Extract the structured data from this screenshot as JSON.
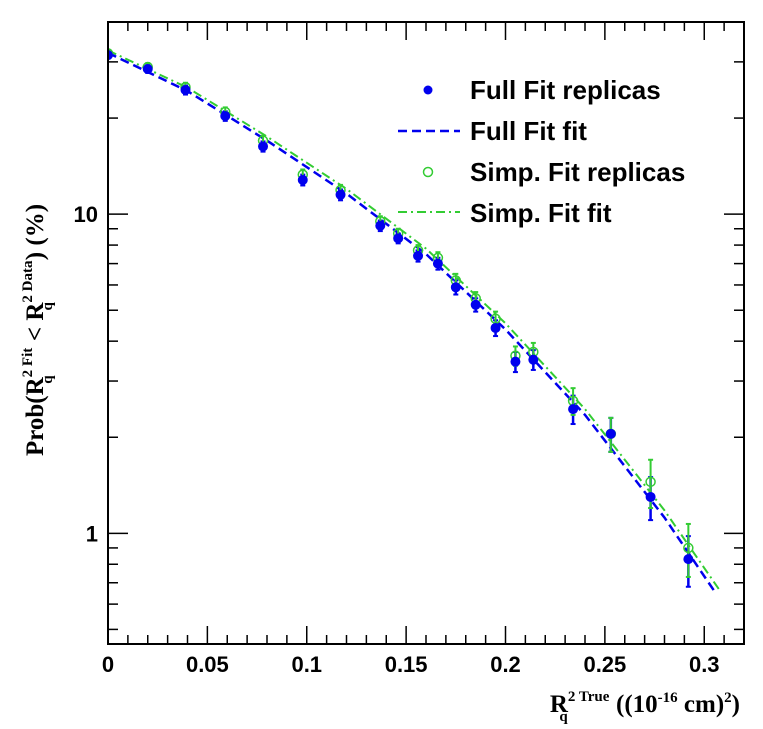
{
  "chart_data": {
    "type": "scatter",
    "title": "",
    "xlabel": {
      "base": "R",
      "sub": "q",
      "sup": "2 True",
      "rest": " ((10",
      "exp": "-16",
      "unit": " cm)",
      "close": "2",
      "end": ")"
    },
    "ylabel": {
      "pre": "Prob(R",
      "sup1": "2 Fit",
      "sub1": "q",
      "mid": " < R",
      "sup2": "2 Data",
      "sub2": "q",
      "post": ") (%)"
    },
    "x_range": [
      0,
      0.32
    ],
    "y_range": [
      0.45,
      40
    ],
    "y_scale": "log",
    "x_ticks": [
      {
        "value": 0,
        "label": "0"
      },
      {
        "value": 0.05,
        "label": "0.05"
      },
      {
        "value": 0.1,
        "label": "0.1"
      },
      {
        "value": 0.15,
        "label": "0.15"
      },
      {
        "value": 0.2,
        "label": "0.2"
      },
      {
        "value": 0.25,
        "label": "0.25"
      },
      {
        "value": 0.3,
        "label": "0.3"
      }
    ],
    "y_ticks": [
      {
        "value": 1,
        "label": "1"
      },
      {
        "value": 10,
        "label": "10"
      }
    ],
    "legend": {
      "placement": "top-right"
    },
    "colors": {
      "full": "#0000ee",
      "simp": "#33cc33"
    },
    "series": [
      {
        "name": "Full Fit replicas",
        "kind": "points",
        "points": [
          {
            "x": 0.0,
            "y": 31.5,
            "err": 0.8
          },
          {
            "x": 0.02,
            "y": 28.5,
            "err": 0.8
          },
          {
            "x": 0.039,
            "y": 24.5,
            "err": 0.8
          },
          {
            "x": 0.059,
            "y": 20.3,
            "err": 0.7
          },
          {
            "x": 0.078,
            "y": 16.3,
            "err": 0.6
          },
          {
            "x": 0.098,
            "y": 12.8,
            "err": 0.5
          },
          {
            "x": 0.117,
            "y": 11.5,
            "err": 0.45
          },
          {
            "x": 0.137,
            "y": 9.2,
            "err": 0.35
          },
          {
            "x": 0.146,
            "y": 8.4,
            "err": 0.3
          },
          {
            "x": 0.156,
            "y": 7.4,
            "err": 0.3
          },
          {
            "x": 0.166,
            "y": 7.0,
            "err": 0.3
          },
          {
            "x": 0.175,
            "y": 5.9,
            "err": 0.3
          },
          {
            "x": 0.185,
            "y": 5.2,
            "err": 0.25
          },
          {
            "x": 0.195,
            "y": 4.4,
            "err": 0.25
          },
          {
            "x": 0.205,
            "y": 3.45,
            "err": 0.25
          },
          {
            "x": 0.214,
            "y": 3.5,
            "err": 0.25
          },
          {
            "x": 0.234,
            "y": 2.45,
            "err": 0.25
          },
          {
            "x": 0.253,
            "y": 2.05,
            "err": 0.25
          },
          {
            "x": 0.273,
            "y": 1.3,
            "err": 0.2
          },
          {
            "x": 0.292,
            "y": 0.83,
            "err": 0.15
          }
        ]
      },
      {
        "name": "Full Fit fit",
        "kind": "line",
        "dash": "dashed",
        "points": [
          {
            "x": 0.0,
            "y": 32.0
          },
          {
            "x": 0.04,
            "y": 24.3
          },
          {
            "x": 0.08,
            "y": 17.0
          },
          {
            "x": 0.12,
            "y": 11.6
          },
          {
            "x": 0.16,
            "y": 7.5
          },
          {
            "x": 0.2,
            "y": 4.35
          },
          {
            "x": 0.24,
            "y": 2.35
          },
          {
            "x": 0.28,
            "y": 1.12
          },
          {
            "x": 0.305,
            "y": 0.66
          }
        ]
      },
      {
        "name": "Simp. Fit replicas",
        "kind": "open-points",
        "points": [
          {
            "x": 0.0,
            "y": 31.9,
            "err": 0.8
          },
          {
            "x": 0.02,
            "y": 28.9,
            "err": 0.8
          },
          {
            "x": 0.039,
            "y": 25.0,
            "err": 0.8
          },
          {
            "x": 0.059,
            "y": 20.9,
            "err": 0.7
          },
          {
            "x": 0.078,
            "y": 17.0,
            "err": 0.6
          },
          {
            "x": 0.098,
            "y": 13.3,
            "err": 0.5
          },
          {
            "x": 0.117,
            "y": 11.9,
            "err": 0.45
          },
          {
            "x": 0.137,
            "y": 9.5,
            "err": 0.35
          },
          {
            "x": 0.146,
            "y": 8.7,
            "err": 0.3
          },
          {
            "x": 0.156,
            "y": 7.7,
            "err": 0.3
          },
          {
            "x": 0.166,
            "y": 7.3,
            "err": 0.3
          },
          {
            "x": 0.175,
            "y": 6.2,
            "err": 0.3
          },
          {
            "x": 0.185,
            "y": 5.45,
            "err": 0.25
          },
          {
            "x": 0.195,
            "y": 4.7,
            "err": 0.25
          },
          {
            "x": 0.205,
            "y": 3.6,
            "err": 0.25
          },
          {
            "x": 0.214,
            "y": 3.7,
            "err": 0.25
          },
          {
            "x": 0.234,
            "y": 2.6,
            "err": 0.25
          },
          {
            "x": 0.253,
            "y": 2.05,
            "err": 0.25
          },
          {
            "x": 0.273,
            "y": 1.45,
            "err": 0.25
          },
          {
            "x": 0.292,
            "y": 0.9,
            "err": 0.17
          }
        ]
      },
      {
        "name": "Simp. Fit fit",
        "kind": "line",
        "dash": "dashdot",
        "points": [
          {
            "x": 0.0,
            "y": 32.6
          },
          {
            "x": 0.04,
            "y": 24.9
          },
          {
            "x": 0.08,
            "y": 17.5
          },
          {
            "x": 0.12,
            "y": 12.0
          },
          {
            "x": 0.16,
            "y": 7.8
          },
          {
            "x": 0.2,
            "y": 4.55
          },
          {
            "x": 0.24,
            "y": 2.45
          },
          {
            "x": 0.28,
            "y": 1.18
          },
          {
            "x": 0.308,
            "y": 0.66
          }
        ]
      }
    ]
  }
}
